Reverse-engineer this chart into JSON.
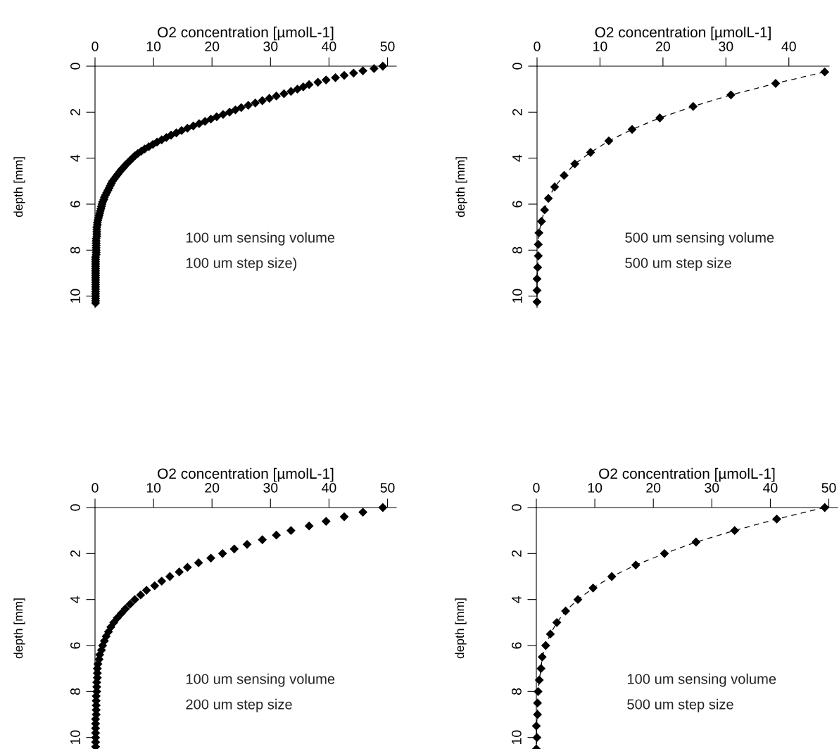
{
  "chart_data": [
    {
      "type": "scatter",
      "xlabel": "O2 concentration [µmolL-1]",
      "ylabel": "depth [mm]",
      "color": "#000000",
      "marker": "diamond",
      "grid": false,
      "xlim": [
        0,
        51.5
      ],
      "xticks": [
        0,
        10,
        20,
        30,
        40,
        50
      ],
      "ylim": [
        10.5,
        0
      ],
      "yticks": [
        0,
        2,
        4,
        6,
        8,
        10
      ],
      "annotations": [
        "100 um sensing volume",
        "100 um step size)"
      ],
      "x": [
        49.2,
        47.7,
        45.8,
        44.2,
        42.6,
        41.1,
        39.5,
        38.1,
        36.6,
        35.6,
        34.6,
        33.5,
        32.3,
        31.0,
        29.8,
        28.6,
        27.4,
        26.2,
        25.0,
        24.0,
        23.0,
        21.9,
        20.8,
        19.8,
        18.8,
        17.8,
        16.8,
        15.8,
        14.8,
        13.9,
        13.0,
        12.2,
        11.4,
        10.6,
        9.9,
        9.2,
        8.5,
        7.9,
        7.3,
        6.8,
        6.4,
        6.0,
        5.6,
        5.2,
        4.9,
        4.5,
        4.2,
        3.9,
        3.6,
        3.3,
        3.0,
        2.8,
        2.6,
        2.4,
        2.2,
        2.0,
        1.8,
        1.6,
        1.5,
        1.3,
        1.2,
        1.1,
        1.0,
        0.9,
        0.8,
        0.7,
        0.6,
        0.5,
        0.4,
        0.4,
        0.3,
        0.3,
        0.3,
        0.3,
        0.3,
        0.2,
        0.2,
        0.2,
        0.2,
        0.2,
        0.2,
        0.2,
        0.2,
        0.1,
        0.1,
        0.1,
        0.1,
        0.1,
        0.1,
        0.1,
        0.1,
        0.1,
        0.1,
        0.1,
        0.1,
        0.1,
        0.1,
        0.1,
        0.1,
        0.1,
        0.1,
        0.1,
        0.1,
        0.1
      ],
      "values": [
        0,
        0.1,
        0.2,
        0.3,
        0.4,
        0.5,
        0.6,
        0.7,
        0.8,
        0.9,
        1.0,
        1.1,
        1.2,
        1.3,
        1.4,
        1.5,
        1.6,
        1.7,
        1.8,
        1.9,
        2.0,
        2.1,
        2.2,
        2.3,
        2.4,
        2.5,
        2.6,
        2.7,
        2.8,
        2.9,
        3.0,
        3.1,
        3.2,
        3.3,
        3.4,
        3.5,
        3.6,
        3.7,
        3.8,
        3.9,
        4.0,
        4.1,
        4.2,
        4.3,
        4.4,
        4.5,
        4.6,
        4.7,
        4.8,
        4.9,
        5.0,
        5.1,
        5.2,
        5.3,
        5.4,
        5.5,
        5.6,
        5.7,
        5.8,
        5.9,
        6.0,
        6.1,
        6.2,
        6.3,
        6.4,
        6.5,
        6.6,
        6.7,
        6.8,
        6.9,
        7.0,
        7.1,
        7.2,
        7.3,
        7.4,
        7.5,
        7.6,
        7.7,
        7.8,
        7.9,
        8.0,
        8.1,
        8.2,
        8.3,
        8.4,
        8.5,
        8.6,
        8.7,
        8.8,
        8.9,
        9.0,
        9.1,
        9.2,
        9.3,
        9.4,
        9.5,
        9.6,
        9.7,
        9.8,
        9.9,
        10.0,
        10.1,
        10.2,
        10.3
      ]
    },
    {
      "type": "line",
      "xlabel": "O2 concentration [µmolL-1]",
      "ylabel": "depth [mm]",
      "color": "#000000",
      "marker": "diamond",
      "line_style": "dashed",
      "grid": false,
      "xlim": [
        0,
        46.4
      ],
      "xticks": [
        0,
        10,
        20,
        30,
        40
      ],
      "ylim": [
        10.5,
        0
      ],
      "yticks": [
        0,
        2,
        4,
        6,
        8,
        10
      ],
      "annotations": [
        "500 um sensing volume",
        "500 um step size"
      ],
      "x": [
        45.7,
        37.9,
        30.8,
        24.8,
        19.5,
        15.1,
        11.4,
        8.5,
        6.0,
        4.3,
        2.8,
        1.8,
        1.2,
        0.7,
        0.3,
        0.2,
        0.2,
        0.1,
        0,
        0,
        0
      ],
      "values": [
        0.25,
        0.75,
        1.25,
        1.75,
        2.25,
        2.75,
        3.25,
        3.75,
        4.25,
        4.75,
        5.25,
        5.75,
        6.25,
        6.75,
        7.25,
        7.75,
        8.25,
        8.75,
        9.25,
        9.75,
        10.25
      ]
    },
    {
      "type": "scatter",
      "xlabel": "O2 concentration [µmolL-1]",
      "ylabel": "depth [mm]",
      "color": "#000000",
      "marker": "diamond",
      "grid": false,
      "xlim": [
        0,
        51.5
      ],
      "xticks": [
        0,
        10,
        20,
        30,
        40,
        50
      ],
      "ylim": [
        10.5,
        0
      ],
      "yticks": [
        0,
        2,
        4,
        6,
        8,
        10
      ],
      "annotations": [
        "100 um sensing volume",
        "200 um step size"
      ],
      "x": [
        49.2,
        45.8,
        42.6,
        39.5,
        36.6,
        33.5,
        31.0,
        28.6,
        26.0,
        23.8,
        21.8,
        19.8,
        17.7,
        15.8,
        14.4,
        12.8,
        11.4,
        10.2,
        8.8,
        7.8,
        6.8,
        6.0,
        5.2,
        4.5,
        3.8,
        3.2,
        2.7,
        2.3,
        1.9,
        1.6,
        1.3,
        1.1,
        0.8,
        0.7,
        0.5,
        0.4,
        0.4,
        0.4,
        0.3,
        0.3,
        0.3,
        0.2,
        0.2,
        0.2,
        0.2,
        0.2,
        0.1,
        0.1,
        0.1,
        0.1,
        0.1,
        0.1,
        0.1
      ],
      "values": [
        0,
        0.2,
        0.4,
        0.6,
        0.8,
        1.0,
        1.2,
        1.4,
        1.6,
        1.8,
        2.0,
        2.2,
        2.4,
        2.6,
        2.8,
        3.0,
        3.2,
        3.4,
        3.6,
        3.8,
        4.0,
        4.2,
        4.4,
        4.6,
        4.8,
        5.0,
        5.2,
        5.4,
        5.6,
        5.8,
        6.0,
        6.2,
        6.4,
        6.6,
        6.8,
        7.0,
        7.2,
        7.4,
        7.6,
        7.8,
        8.0,
        8.2,
        8.4,
        8.6,
        8.8,
        9.0,
        9.2,
        9.4,
        9.6,
        9.8,
        10.0,
        10.2,
        10.4
      ]
    },
    {
      "type": "line",
      "xlabel": "O2 concentration [µmolL-1]",
      "ylabel": "depth [mm]",
      "color": "#000000",
      "marker": "diamond",
      "line_style": "dashed",
      "grid": false,
      "xlim": [
        0,
        51.5
      ],
      "xticks": [
        0,
        10,
        20,
        30,
        40,
        50
      ],
      "ylim": [
        10.5,
        0
      ],
      "yticks": [
        0,
        2,
        4,
        6,
        8,
        10
      ],
      "annotations": [
        "100 um sensing volume",
        "500 um step size"
      ],
      "x": [
        49.3,
        41.1,
        33.9,
        27.3,
        21.9,
        17.0,
        12.9,
        9.7,
        7.1,
        5.0,
        3.5,
        2.4,
        1.6,
        1.0,
        0.8,
        0.5,
        0.3,
        0.2,
        0.2,
        0,
        0.1,
        0
      ],
      "values": [
        0,
        0.5,
        1.0,
        1.5,
        2.0,
        2.5,
        3.0,
        3.5,
        4.0,
        4.5,
        5.0,
        5.5,
        6.0,
        6.5,
        7.0,
        7.5,
        8.0,
        8.5,
        9.0,
        9.5,
        10.0,
        10.5
      ]
    }
  ]
}
